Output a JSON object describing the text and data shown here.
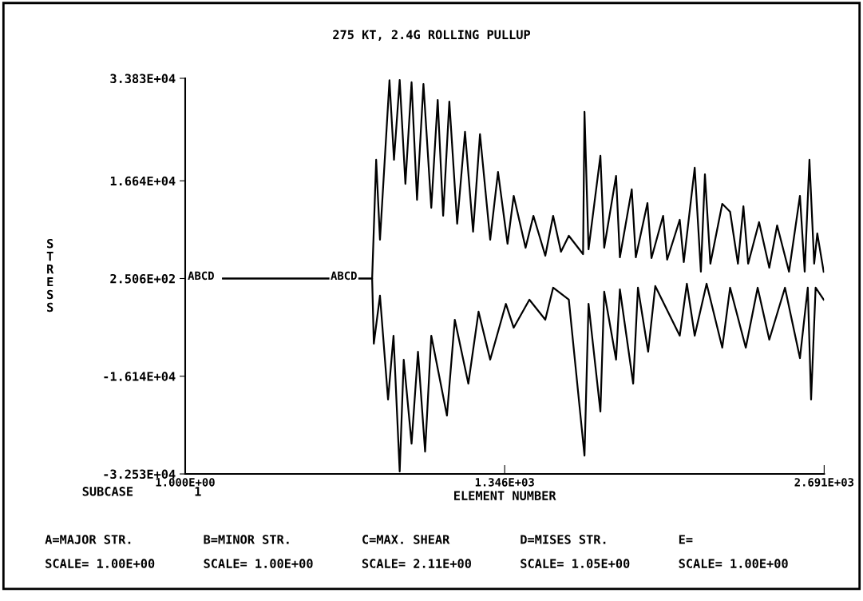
{
  "chart_data": {
    "type": "line",
    "title": "275 KT, 2.4G ROLLING PULLUP",
    "xlabel": "ELEMENT NUMBER",
    "ylabel": "STRESS",
    "xlim": [
      1,
      2691
    ],
    "xticks": [
      {
        "value": 1,
        "label": "1.000E+00"
      },
      {
        "value": 1346,
        "label": "1.346E+03"
      },
      {
        "value": 2691,
        "label": "2.691E+03"
      }
    ],
    "ylim": [
      -32530,
      33830
    ],
    "yticks": [
      {
        "value": -32530,
        "label": "-3.253E+04"
      },
      {
        "value": -16140,
        "label": "-1.614E+04"
      },
      {
        "value": 250.6,
        "label": "2.506E+02"
      },
      {
        "value": 16640,
        "label": "1.664E+04"
      },
      {
        "value": 33830,
        "label": "3.383E+04"
      }
    ],
    "grid": false,
    "legend": false,
    "marker": "none",
    "line_style": "solid",
    "series": [
      {
        "color": "#000000",
        "x": [
          160,
          788,
          805,
          821,
          861,
          880,
          904,
          928,
          954,
          977,
          1004,
          1037,
          1064,
          1087,
          1113,
          1146,
          1179,
          1213,
          1242,
          1285,
          1318,
          1358,
          1384,
          1434,
          1467,
          1517,
          1550,
          1583,
          1616,
          1676,
          1682,
          1699,
          1749,
          1765,
          1815,
          1831,
          1881,
          1898,
          1947,
          1964,
          2013,
          2030,
          2083,
          2100,
          2146,
          2172,
          2189,
          2212,
          2262,
          2295,
          2328,
          2351,
          2371,
          2417,
          2460,
          2493,
          2543,
          2589,
          2609,
          2629,
          2649,
          2662,
          2689
        ],
        "values": [
          250,
          250,
          20160,
          6750,
          33500,
          20160,
          33560,
          16130,
          33160,
          13450,
          32890,
          12110,
          30210,
          10770,
          29940,
          9430,
          24850,
          8090,
          24450,
          6750,
          18140,
          6080,
          14120,
          5410,
          10770,
          4070,
          10770,
          4740,
          7420,
          4340,
          28200,
          5140,
          20830,
          5410,
          17470,
          3800,
          15200,
          3800,
          12910,
          3670,
          10770,
          3400,
          10100,
          3000,
          18820,
          1390,
          17740,
          2730,
          12780,
          11440,
          2730,
          12380,
          2730,
          9700,
          2060,
          9160,
          1390,
          14120,
          1390,
          20160,
          2730,
          7820,
          1390
        ]
      },
      {
        "color": "#000000",
        "x": [
          160,
          788,
          795,
          821,
          855,
          878,
          904,
          921,
          954,
          981,
          1011,
          1037,
          1103,
          1136,
          1193,
          1236,
          1285,
          1351,
          1384,
          1450,
          1517,
          1550,
          1616,
          1682,
          1699,
          1749,
          1765,
          1815,
          1831,
          1887,
          1907,
          1950,
          1980,
          2083,
          2113,
          2146,
          2196,
          2262,
          2295,
          2361,
          2411,
          2460,
          2526,
          2589,
          2622,
          2636,
          2655,
          2689
        ],
        "values": [
          250,
          250,
          -10680,
          -2630,
          -20060,
          -9340,
          -32120,
          -13360,
          -27440,
          -12020,
          -28780,
          -9340,
          -22740,
          -6660,
          -17380,
          -5310,
          -13360,
          -4000,
          -8000,
          -3300,
          -6660,
          -1290,
          -3300,
          -29450,
          -4000,
          -22070,
          -1960,
          -13360,
          -1560,
          -17380,
          -1290,
          -12020,
          -1020,
          -9340,
          -620,
          -9340,
          -620,
          -11350,
          -1290,
          -11350,
          -1290,
          -10010,
          -1290,
          -13090,
          -1290,
          -20060,
          -1290,
          -3300
        ]
      }
    ],
    "annotations": [
      "ABCD",
      "ABCD",
      "SUBCASE",
      "1",
      "A=MAJOR STR.",
      "B=MINOR STR.",
      "C=MAX. SHEAR",
      "D=MISES STR.",
      "E=",
      "SCALE= 1.00E+00",
      "SCALE= 1.00E+00",
      "SCALE= 2.11E+00",
      "SCALE= 1.05E+00",
      "SCALE= 1.00E+00"
    ]
  }
}
